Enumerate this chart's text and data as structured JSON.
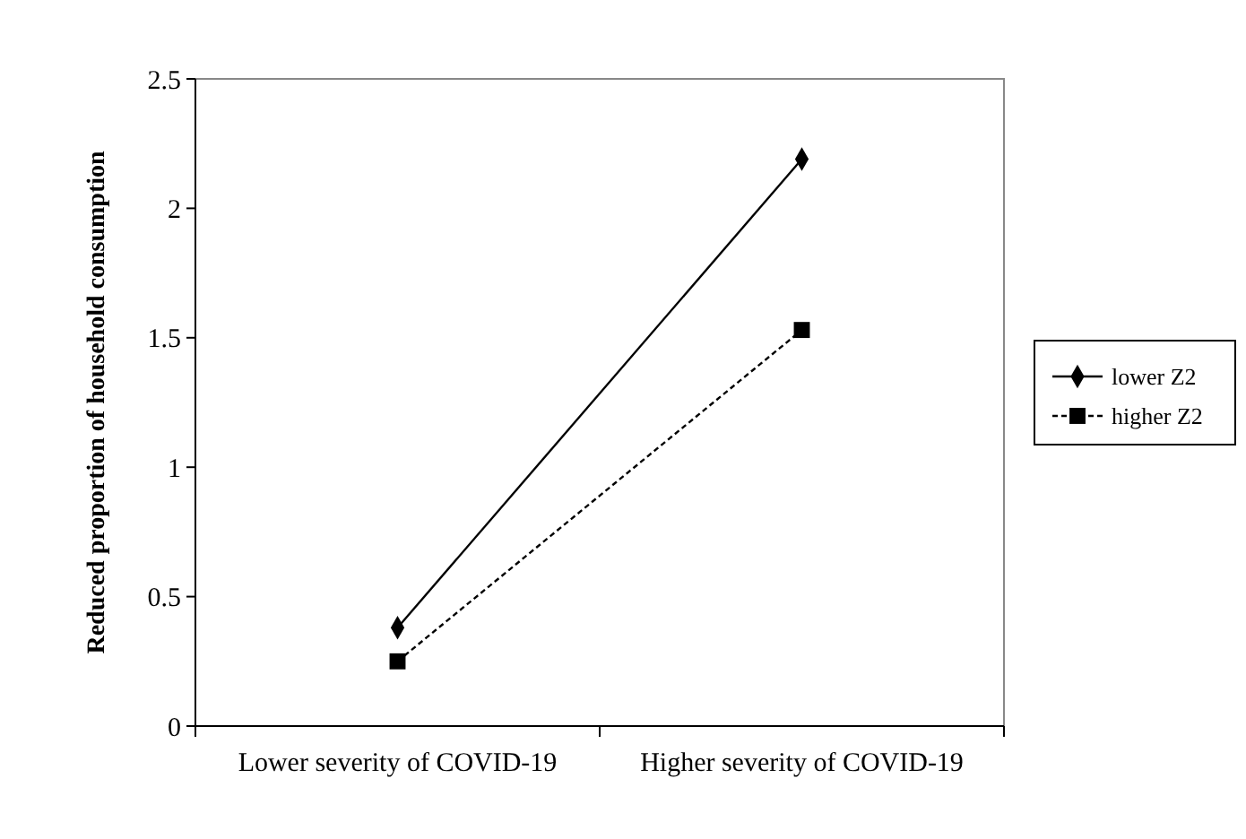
{
  "chart_data": {
    "type": "line",
    "ylabel": "Reduced proportion of household consumption",
    "categories": [
      "Lower severity of COVID-19",
      "Higher severity of COVID-19"
    ],
    "series": [
      {
        "name": "lower Z2",
        "color": "#000000",
        "values": [
          0.38,
          2.19
        ],
        "marker": "diamond",
        "line_style": "solid"
      },
      {
        "name": "higher Z2",
        "color": "#000000",
        "values": [
          0.25,
          1.53
        ],
        "marker": "square",
        "line_style": "dashed"
      }
    ],
    "ylim": [
      0,
      2.5
    ],
    "yticks": [
      0,
      0.5,
      1,
      1.5,
      2,
      2.5
    ],
    "grid": false,
    "legend": "right"
  }
}
